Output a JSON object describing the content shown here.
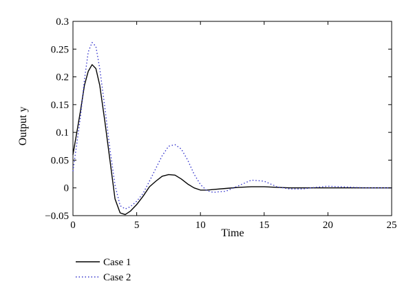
{
  "chart_data": {
    "type": "line",
    "xlabel": "Time",
    "ylabel": "Output y",
    "xlim": [
      0,
      25
    ],
    "ylim": [
      -0.05,
      0.3
    ],
    "xticks": [
      0,
      5,
      10,
      15,
      20,
      25
    ],
    "yticks": [
      -0.05,
      0,
      0.05,
      0.1,
      0.15,
      0.2,
      0.25,
      0.3
    ],
    "ytick_labels": [
      "−0.05",
      "0",
      "0.05",
      "0.1",
      "0.15",
      "0.2",
      "0.25",
      "0.3"
    ],
    "grid": false,
    "legend_position": "below-left",
    "series": [
      {
        "name": "Case 1",
        "color": "#000000",
        "style": "solid",
        "x": [
          0,
          0.3,
          0.6,
          0.9,
          1.2,
          1.5,
          1.8,
          2.1,
          2.5,
          2.9,
          3.3,
          3.7,
          4.1,
          4.5,
          5,
          5.5,
          6,
          6.5,
          7,
          7.5,
          8,
          8.5,
          9,
          9.5,
          10,
          10.5,
          11,
          12,
          13,
          14,
          15,
          16,
          17,
          18,
          20,
          22,
          25
        ],
        "y": [
          0.06,
          0.1,
          0.14,
          0.185,
          0.21,
          0.222,
          0.215,
          0.185,
          0.12,
          0.05,
          -0.02,
          -0.045,
          -0.048,
          -0.042,
          -0.03,
          -0.015,
          0.002,
          0.012,
          0.021,
          0.024,
          0.023,
          0.016,
          0.007,
          0,
          -0.004,
          -0.004,
          -0.003,
          -0.001,
          0.001,
          0.002,
          0.002,
          0.001,
          0,
          0,
          0,
          0,
          0
        ]
      },
      {
        "name": "Case 2",
        "color": "#3333cc",
        "style": "dotted",
        "x": [
          0,
          0.3,
          0.6,
          0.9,
          1.2,
          1.5,
          1.8,
          2.1,
          2.5,
          2.9,
          3.3,
          3.7,
          4.1,
          4.5,
          5,
          5.5,
          6,
          6.5,
          7,
          7.5,
          8,
          8.5,
          9,
          9.5,
          10,
          10.5,
          11,
          12,
          13,
          14,
          15,
          16,
          17,
          18,
          19,
          20,
          21,
          22,
          23,
          25
        ],
        "y": [
          0.03,
          0.08,
          0.13,
          0.195,
          0.245,
          0.262,
          0.255,
          0.215,
          0.145,
          0.07,
          0.005,
          -0.032,
          -0.038,
          -0.034,
          -0.024,
          -0.01,
          0.012,
          0.035,
          0.058,
          0.075,
          0.078,
          0.07,
          0.05,
          0.025,
          0.006,
          -0.005,
          -0.008,
          -0.006,
          0.004,
          0.014,
          0.012,
          0.002,
          -0.002,
          -0.002,
          0.001,
          0.003,
          0.002,
          0.001,
          0,
          0
        ]
      }
    ]
  }
}
